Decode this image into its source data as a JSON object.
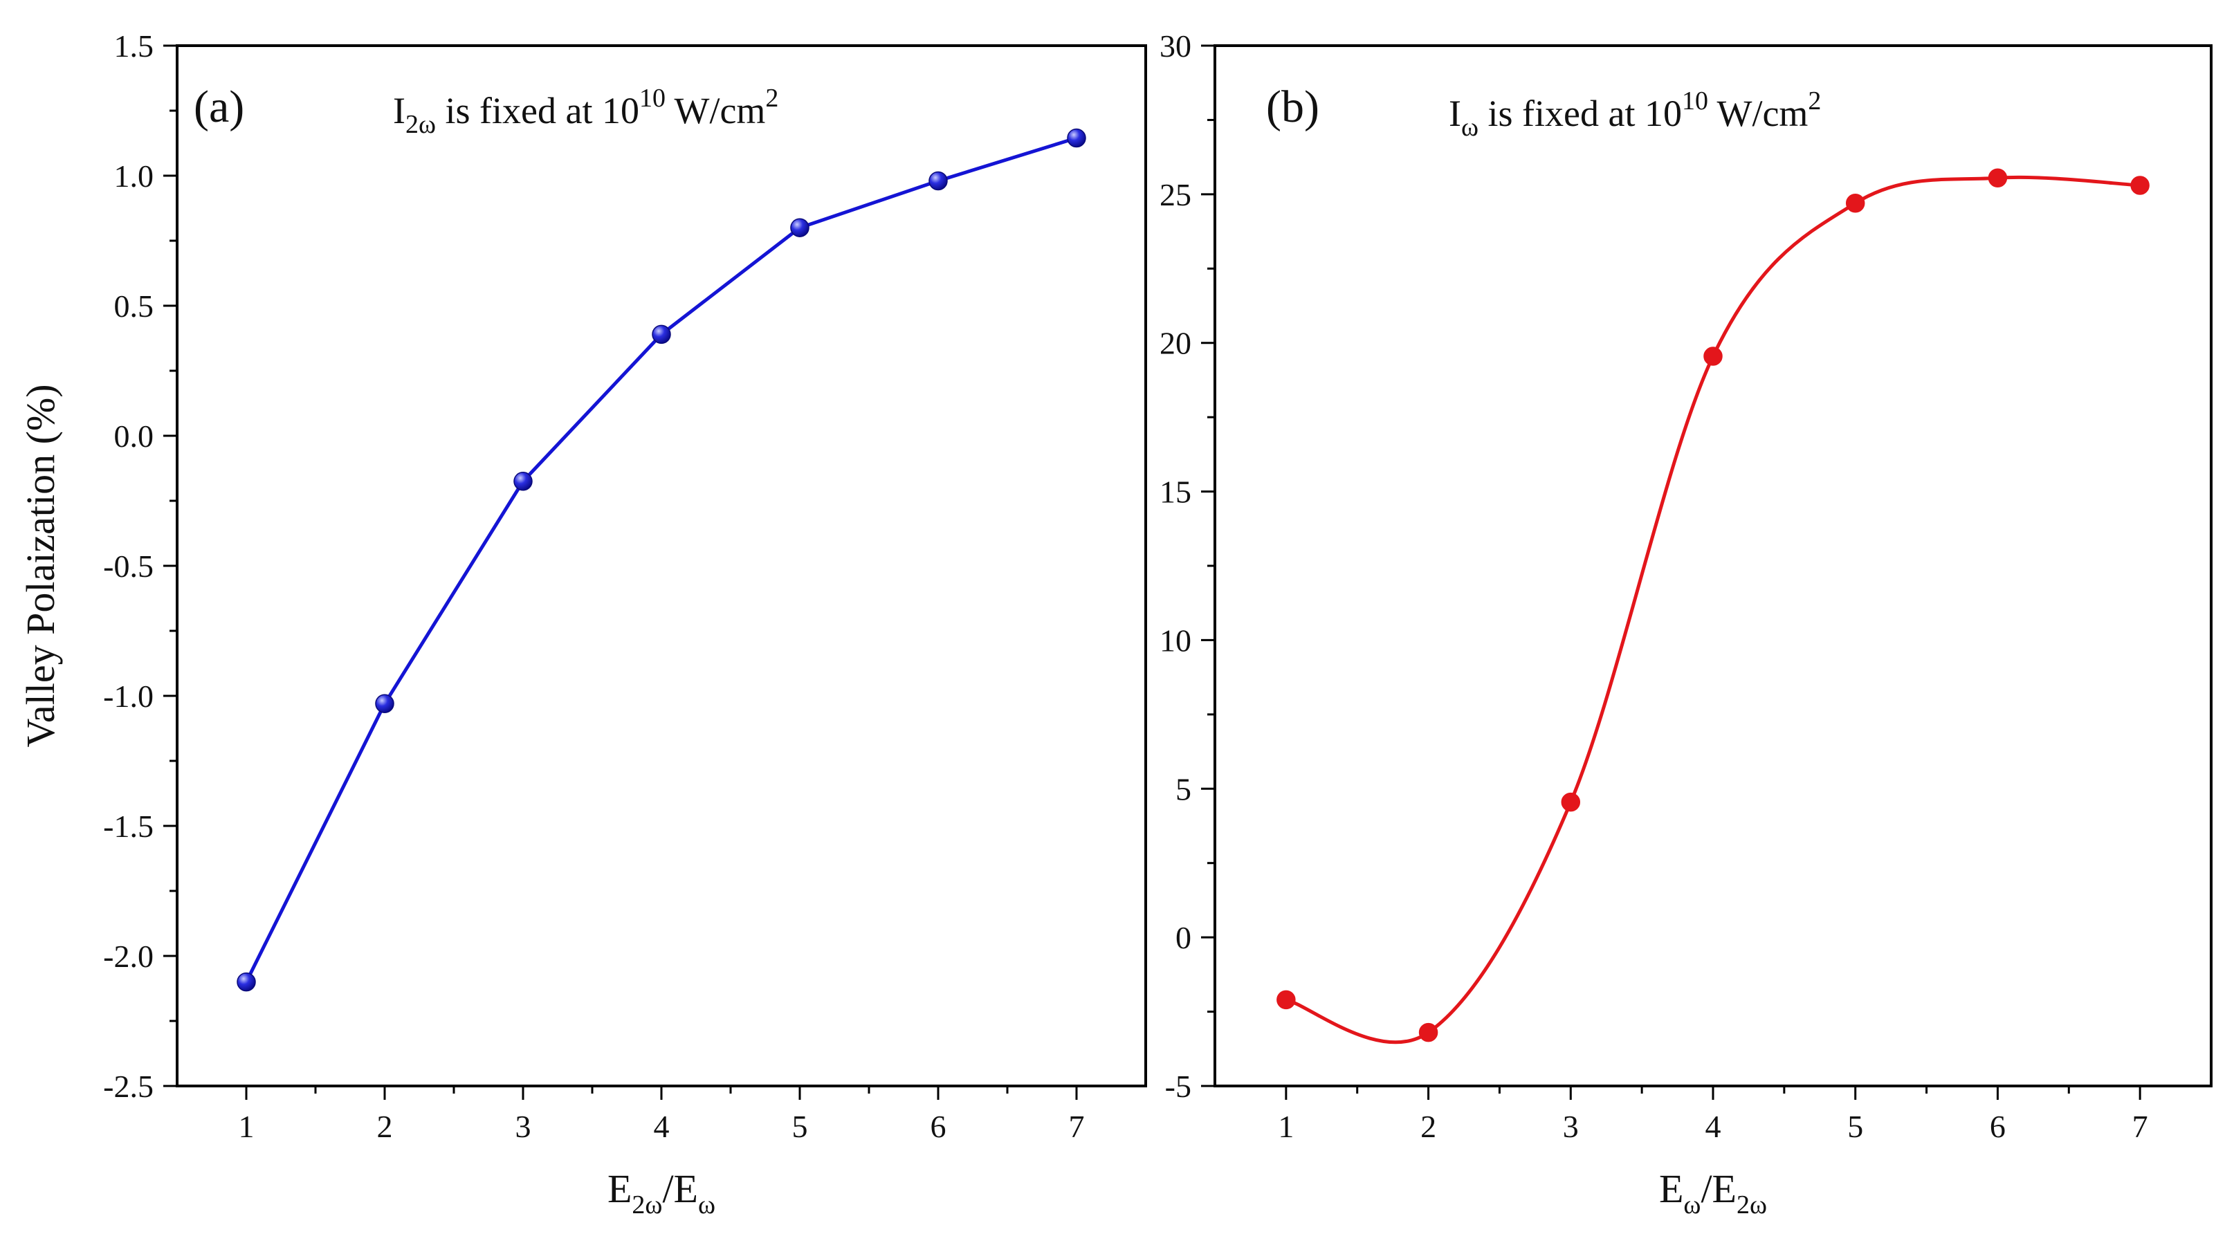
{
  "chart_data": [
    {
      "type": "line",
      "panel_label": "(a)",
      "annotation": {
        "symbol": "I",
        "subscript": "2ω",
        "text": " is fixed at 10",
        "exponent": "10",
        "unit": " W/cm",
        "unit_exp": "2"
      },
      "xlabel": {
        "main": "E",
        "sub1": "2ω",
        "slash": "/E",
        "sub2": "ω"
      },
      "ylabel": "Valley Polaization (%)",
      "x": [
        1,
        2,
        3,
        4,
        5,
        6,
        7
      ],
      "values": [
        -2.1,
        -1.03,
        -0.175,
        0.39,
        0.8,
        0.98,
        1.145
      ],
      "xlim": [
        0.5,
        7.5
      ],
      "ylim": [
        -2.5,
        1.5
      ],
      "xticks": [
        1,
        2,
        3,
        4,
        5,
        6,
        7
      ],
      "yticks": [
        -2.5,
        -2.0,
        -1.5,
        -1.0,
        -0.5,
        0.0,
        0.5,
        1.0,
        1.5
      ],
      "ytick_labels": [
        "-2.5",
        "-2.0",
        "-1.5",
        "-1.0",
        "-0.5",
        "0.0",
        "0.5",
        "1.0",
        "1.5"
      ],
      "color": "#1414d4",
      "line_style": "straight",
      "marker": "sphere"
    },
    {
      "type": "line",
      "panel_label": "(b)",
      "annotation": {
        "symbol": "I",
        "subscript": "ω",
        "text": " is fixed at 10",
        "exponent": "10",
        "unit": " W/cm",
        "unit_exp": "2"
      },
      "xlabel": {
        "main": "E",
        "sub1": "ω",
        "slash": "/E",
        "sub2": "2ω"
      },
      "ylabel": "",
      "x": [
        1,
        2,
        3,
        4,
        5,
        6,
        7
      ],
      "values": [
        -2.1,
        -3.2,
        4.55,
        19.55,
        24.7,
        25.55,
        25.3
      ],
      "xlim": [
        0.5,
        7.5
      ],
      "ylim": [
        -5,
        30
      ],
      "xticks": [
        1,
        2,
        3,
        4,
        5,
        6,
        7
      ],
      "yticks": [
        -5,
        0,
        5,
        10,
        15,
        20,
        25,
        30
      ],
      "ytick_labels": [
        "-5",
        "0",
        "5",
        "10",
        "15",
        "20",
        "25",
        "30"
      ],
      "color": "#e3161b",
      "line_style": "smooth",
      "marker": "dot"
    }
  ]
}
